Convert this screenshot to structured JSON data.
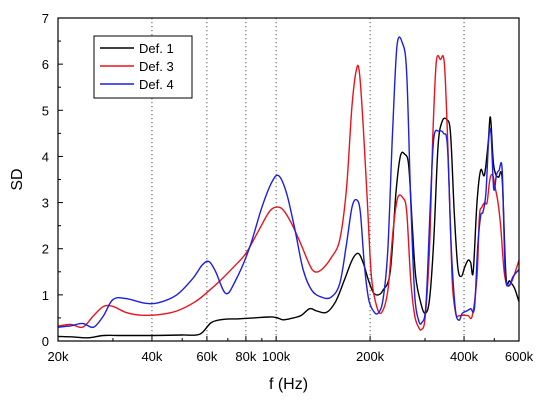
{
  "chart_data": {
    "type": "line",
    "title": "",
    "xlabel": "f (Hz)",
    "ylabel": "SD",
    "x_scale": "log",
    "xlim": [
      20000,
      600000
    ],
    "ylim": [
      0,
      7
    ],
    "x_ticks": [
      {
        "value": 20000,
        "label": "20k"
      },
      {
        "value": 40000,
        "label": "40k"
      },
      {
        "value": 60000,
        "label": "60k"
      },
      {
        "value": 80000,
        "label": "80k"
      },
      {
        "value": 100000,
        "label": "100k"
      },
      {
        "value": 200000,
        "label": "200k"
      },
      {
        "value": 400000,
        "label": "400k"
      },
      {
        "value": 600000,
        "label": "600k"
      }
    ],
    "y_ticks": [
      0,
      1,
      2,
      3,
      4,
      5,
      6,
      7
    ],
    "vertical_gridlines": [
      40000,
      60000,
      80000,
      100000,
      200000,
      400000
    ],
    "legend_position": "top-left",
    "series": [
      {
        "name": "Def. 1",
        "color": "#000000",
        "points": [
          [
            20000,
            0.1
          ],
          [
            22000,
            0.09
          ],
          [
            25000,
            0.07
          ],
          [
            28000,
            0.12
          ],
          [
            32000,
            0.12
          ],
          [
            40000,
            0.12
          ],
          [
            50000,
            0.13
          ],
          [
            57000,
            0.15
          ],
          [
            62000,
            0.4
          ],
          [
            68000,
            0.47
          ],
          [
            75000,
            0.48
          ],
          [
            85000,
            0.5
          ],
          [
            95000,
            0.52
          ],
          [
            100000,
            0.51
          ],
          [
            105000,
            0.46
          ],
          [
            110000,
            0.48
          ],
          [
            120000,
            0.55
          ],
          [
            128000,
            0.7
          ],
          [
            135000,
            0.65
          ],
          [
            145000,
            0.62
          ],
          [
            155000,
            0.85
          ],
          [
            165000,
            1.3
          ],
          [
            175000,
            1.75
          ],
          [
            183000,
            1.9
          ],
          [
            190000,
            1.7
          ],
          [
            198000,
            1.3
          ],
          [
            205000,
            1.05
          ],
          [
            212000,
            1.0
          ],
          [
            220000,
            1.1
          ],
          [
            232000,
            1.5
          ],
          [
            242000,
            3.2
          ],
          [
            250000,
            4.0
          ],
          [
            258000,
            4.05
          ],
          [
            266000,
            3.8
          ],
          [
            273000,
            2.5
          ],
          [
            280000,
            1.4
          ],
          [
            290000,
            0.85
          ],
          [
            300000,
            0.6
          ],
          [
            310000,
            0.9
          ],
          [
            320000,
            2.2
          ],
          [
            330000,
            4.2
          ],
          [
            340000,
            4.75
          ],
          [
            352000,
            4.8
          ],
          [
            362000,
            4.5
          ],
          [
            372000,
            2.8
          ],
          [
            382000,
            1.6
          ],
          [
            392000,
            1.4
          ],
          [
            402000,
            1.6
          ],
          [
            412000,
            1.75
          ],
          [
            420000,
            1.7
          ],
          [
            428000,
            1.5
          ],
          [
            440000,
            3.0
          ],
          [
            452000,
            3.7
          ],
          [
            465000,
            3.6
          ],
          [
            478000,
            4.3
          ],
          [
            486000,
            4.85
          ],
          [
            496000,
            3.9
          ],
          [
            506000,
            3.6
          ],
          [
            516000,
            3.55
          ],
          [
            530000,
            3.5
          ],
          [
            545000,
            1.4
          ],
          [
            560000,
            1.3
          ],
          [
            580000,
            1.15
          ],
          [
            600000,
            0.85
          ]
        ]
      },
      {
        "name": "Def. 3",
        "color": "#e8141c",
        "points": [
          [
            20000,
            0.32
          ],
          [
            22000,
            0.36
          ],
          [
            24000,
            0.3
          ],
          [
            26000,
            0.55
          ],
          [
            28000,
            0.75
          ],
          [
            30000,
            0.75
          ],
          [
            33000,
            0.62
          ],
          [
            37000,
            0.56
          ],
          [
            42000,
            0.57
          ],
          [
            48000,
            0.65
          ],
          [
            55000,
            0.85
          ],
          [
            60000,
            1.05
          ],
          [
            66000,
            1.3
          ],
          [
            73000,
            1.6
          ],
          [
            80000,
            1.9
          ],
          [
            88000,
            2.4
          ],
          [
            95000,
            2.8
          ],
          [
            100000,
            2.9
          ],
          [
            105000,
            2.85
          ],
          [
            112000,
            2.55
          ],
          [
            120000,
            2.1
          ],
          [
            128000,
            1.65
          ],
          [
            133000,
            1.5
          ],
          [
            140000,
            1.55
          ],
          [
            150000,
            1.8
          ],
          [
            160000,
            2.2
          ],
          [
            168000,
            3.3
          ],
          [
            175000,
            5.1
          ],
          [
            181000,
            5.9
          ],
          [
            185000,
            5.8
          ],
          [
            190000,
            4.7
          ],
          [
            196000,
            3.0
          ],
          [
            202000,
            1.4
          ],
          [
            210000,
            0.75
          ],
          [
            218000,
            0.62
          ],
          [
            228000,
            1.1
          ],
          [
            237000,
            2.4
          ],
          [
            245000,
            3.1
          ],
          [
            255000,
            3.1
          ],
          [
            262000,
            2.8
          ],
          [
            270000,
            1.3
          ],
          [
            278000,
            0.55
          ],
          [
            286000,
            0.3
          ],
          [
            292000,
            0.25
          ],
          [
            300000,
            0.5
          ],
          [
            310000,
            2.0
          ],
          [
            318000,
            4.5
          ],
          [
            326000,
            6.05
          ],
          [
            336000,
            6.1
          ],
          [
            346000,
            6.0
          ],
          [
            356000,
            4.0
          ],
          [
            366000,
            1.4
          ],
          [
            376000,
            0.6
          ],
          [
            386000,
            0.55
          ],
          [
            398000,
            0.56
          ],
          [
            412000,
            0.55
          ],
          [
            425000,
            0.55
          ],
          [
            440000,
            1.4
          ],
          [
            448000,
            2.7
          ],
          [
            456000,
            2.9
          ],
          [
            466000,
            3.0
          ],
          [
            474000,
            3.0
          ],
          [
            484000,
            3.5
          ],
          [
            494000,
            3.6
          ],
          [
            504000,
            3.3
          ],
          [
            514000,
            3.0
          ],
          [
            524000,
            2.5
          ],
          [
            538000,
            1.5
          ],
          [
            552000,
            1.2
          ],
          [
            570000,
            1.3
          ],
          [
            600000,
            1.75
          ]
        ]
      },
      {
        "name": "Def. 4",
        "color": "#1e1ee0",
        "points": [
          [
            20000,
            0.3
          ],
          [
            22000,
            0.33
          ],
          [
            24000,
            0.38
          ],
          [
            26000,
            0.3
          ],
          [
            28000,
            0.55
          ],
          [
            30000,
            0.9
          ],
          [
            33000,
            0.92
          ],
          [
            38000,
            0.82
          ],
          [
            42000,
            0.83
          ],
          [
            48000,
            1.0
          ],
          [
            54000,
            1.35
          ],
          [
            58000,
            1.65
          ],
          [
            61000,
            1.72
          ],
          [
            64000,
            1.5
          ],
          [
            69000,
            1.03
          ],
          [
            74000,
            1.3
          ],
          [
            82000,
            2.0
          ],
          [
            90000,
            2.9
          ],
          [
            97000,
            3.45
          ],
          [
            102000,
            3.58
          ],
          [
            108000,
            3.2
          ],
          [
            115000,
            2.4
          ],
          [
            122000,
            1.55
          ],
          [
            130000,
            1.1
          ],
          [
            140000,
            0.95
          ],
          [
            150000,
            0.95
          ],
          [
            160000,
            1.25
          ],
          [
            168000,
            2.1
          ],
          [
            175000,
            2.9
          ],
          [
            181000,
            3.06
          ],
          [
            186000,
            2.8
          ],
          [
            192000,
            1.6
          ],
          [
            198000,
            0.9
          ],
          [
            205000,
            0.65
          ],
          [
            212000,
            0.6
          ],
          [
            220000,
            0.9
          ],
          [
            228000,
            2.0
          ],
          [
            236000,
            4.5
          ],
          [
            244000,
            6.4
          ],
          [
            254000,
            6.45
          ],
          [
            262000,
            5.8
          ],
          [
            270000,
            3.0
          ],
          [
            278000,
            1.0
          ],
          [
            286000,
            0.45
          ],
          [
            293000,
            0.4
          ],
          [
            302000,
            0.8
          ],
          [
            312000,
            3.0
          ],
          [
            320000,
            4.4
          ],
          [
            332000,
            4.55
          ],
          [
            344000,
            4.5
          ],
          [
            354000,
            4.2
          ],
          [
            364000,
            2.0
          ],
          [
            375000,
            0.7
          ],
          [
            385000,
            0.45
          ],
          [
            395000,
            0.6
          ],
          [
            408000,
            0.65
          ],
          [
            420000,
            0.7
          ],
          [
            432000,
            0.72
          ],
          [
            442000,
            2.0
          ],
          [
            452000,
            2.7
          ],
          [
            460000,
            2.8
          ],
          [
            470000,
            3.2
          ],
          [
            480000,
            4.4
          ],
          [
            488000,
            4.5
          ],
          [
            498000,
            3.3
          ],
          [
            508000,
            3.6
          ],
          [
            518000,
            3.7
          ],
          [
            530000,
            3.7
          ],
          [
            542000,
            1.5
          ],
          [
            556000,
            1.2
          ],
          [
            575000,
            1.4
          ],
          [
            600000,
            1.55
          ]
        ]
      }
    ]
  }
}
